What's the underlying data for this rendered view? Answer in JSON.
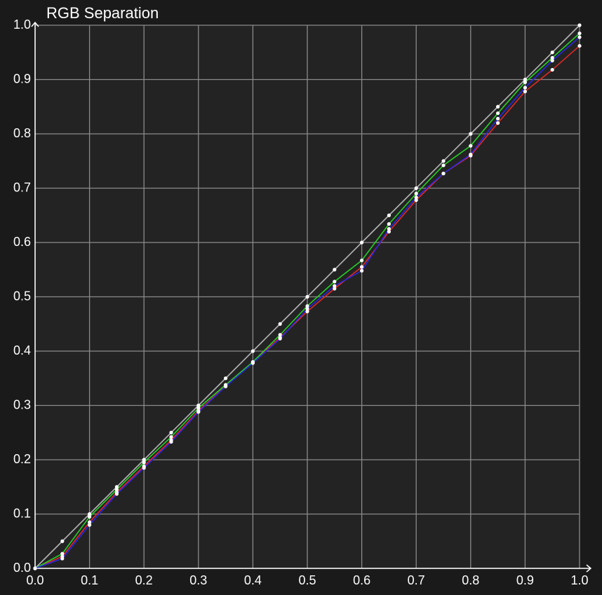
{
  "chart_data": {
    "type": "line",
    "title": "RGB Separation",
    "x": [
      0,
      0.05,
      0.1,
      0.15,
      0.2,
      0.25,
      0.3,
      0.35,
      0.4,
      0.45,
      0.5,
      0.55,
      0.6,
      0.65,
      0.7,
      0.75,
      0.8,
      0.85,
      0.9,
      0.95,
      1
    ],
    "series": [
      {
        "color": "#b4b4b4",
        "values": [
          0,
          0.05,
          0.1,
          0.15,
          0.2,
          0.25,
          0.3,
          0.35,
          0.4,
          0.45,
          0.5,
          0.55,
          0.6,
          0.65,
          0.7,
          0.75,
          0.8,
          0.85,
          0.9,
          0.95,
          1
        ]
      },
      {
        "color": "#e02828",
        "values": [
          0,
          0.022,
          0.085,
          0.14,
          0.188,
          0.236,
          0.29,
          0.336,
          0.38,
          0.425,
          0.473,
          0.515,
          0.555,
          0.62,
          0.678,
          0.727,
          0.76,
          0.82,
          0.878,
          0.918,
          0.962
        ]
      },
      {
        "color": "#28d028",
        "values": [
          0,
          0.027,
          0.095,
          0.145,
          0.195,
          0.242,
          0.295,
          0.338,
          0.38,
          0.43,
          0.483,
          0.528,
          0.567,
          0.634,
          0.69,
          0.742,
          0.778,
          0.838,
          0.895,
          0.94,
          0.985
        ]
      },
      {
        "color": "#2828e0",
        "values": [
          0,
          0.018,
          0.08,
          0.137,
          0.185,
          0.233,
          0.288,
          0.335,
          0.378,
          0.423,
          0.478,
          0.52,
          0.548,
          0.625,
          0.683,
          0.727,
          0.762,
          0.828,
          0.885,
          0.935,
          0.978
        ]
      }
    ],
    "xlim": [
      0,
      1
    ],
    "ylim": [
      0,
      1
    ],
    "xticks": [
      {
        "value": 0,
        "label": "0.0"
      },
      0.1,
      0.2,
      0.3,
      0.4,
      0.5,
      0.6,
      0.7,
      0.8,
      0.9,
      {
        "value": 1,
        "label": "1.0"
      }
    ],
    "yticks": [
      {
        "value": 0,
        "label": "0.0"
      },
      0.1,
      0.2,
      0.3,
      0.4,
      0.5,
      0.6,
      0.7,
      0.8,
      0.9,
      {
        "value": 1,
        "label": "1.0"
      }
    ],
    "grid": true,
    "marker_color": "#ffffff"
  }
}
